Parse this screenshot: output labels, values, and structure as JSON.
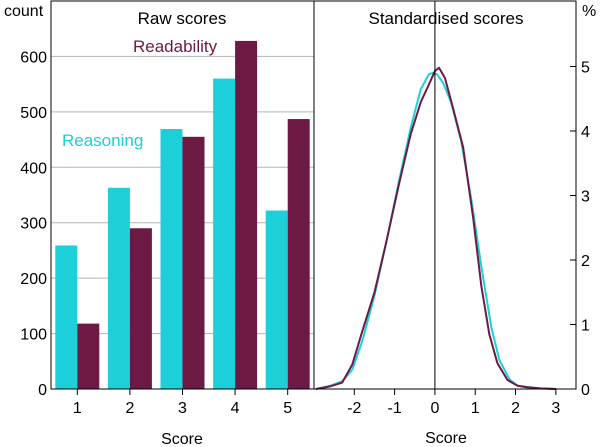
{
  "chart_data": [
    {
      "type": "bar",
      "panel_title": "Raw scores",
      "ylabel": "count",
      "xlabel": "Score",
      "categories": [
        "1",
        "2",
        "3",
        "4",
        "5"
      ],
      "ylim": [
        0,
        700
      ],
      "yticks": [
        0,
        100,
        200,
        300,
        400,
        500,
        600
      ],
      "grid": true,
      "series": [
        {
          "name": "Reasoning",
          "color": "#1ccfd9",
          "values": [
            259,
            363,
            469,
            560,
            322
          ]
        },
        {
          "name": "Readability",
          "color": "#6c1a44",
          "values": [
            118,
            290,
            455,
            628,
            487
          ]
        }
      ]
    },
    {
      "type": "line",
      "panel_title": "Standardised scores",
      "ylabel": "%",
      "xlabel": "Score",
      "xlim": [
        -3,
        3.5
      ],
      "xticks": [
        -2,
        -1,
        0,
        1,
        2,
        3
      ],
      "ylim": [
        0,
        6
      ],
      "yticks": [
        0,
        1,
        2,
        3,
        4,
        5
      ],
      "series": [
        {
          "name": "Reasoning",
          "color": "#1ccfd9",
          "x": [
            -2.95,
            -2.6,
            -2.3,
            -2.05,
            -1.8,
            -1.5,
            -1.2,
            -0.9,
            -0.6,
            -0.35,
            -0.15,
            -0.05,
            0.05,
            0.2,
            0.4,
            0.65,
            0.9,
            1.15,
            1.4,
            1.6,
            1.85,
            2.05,
            2.3,
            2.6,
            3.0
          ],
          "y": [
            0.0,
            0.05,
            0.12,
            0.3,
            0.75,
            1.45,
            2.3,
            3.2,
            4.05,
            4.65,
            4.88,
            4.9,
            4.88,
            4.75,
            4.45,
            3.85,
            2.95,
            1.9,
            0.95,
            0.45,
            0.15,
            0.05,
            0.02,
            0.01,
            0.0
          ]
        },
        {
          "name": "Readability",
          "color": "#6c1a44",
          "x": [
            -2.95,
            -2.6,
            -2.3,
            -2.05,
            -1.8,
            -1.5,
            -1.2,
            -0.9,
            -0.6,
            -0.35,
            -0.15,
            0.0,
            0.1,
            0.25,
            0.45,
            0.7,
            0.95,
            1.15,
            1.35,
            1.55,
            1.8,
            2.05,
            2.3,
            2.6,
            3.0
          ],
          "y": [
            0.0,
            0.04,
            0.1,
            0.38,
            0.9,
            1.5,
            2.3,
            3.15,
            3.95,
            4.45,
            4.72,
            4.93,
            4.98,
            4.82,
            4.35,
            3.75,
            2.65,
            1.6,
            0.85,
            0.4,
            0.14,
            0.05,
            0.03,
            0.01,
            0.0
          ]
        }
      ]
    }
  ]
}
